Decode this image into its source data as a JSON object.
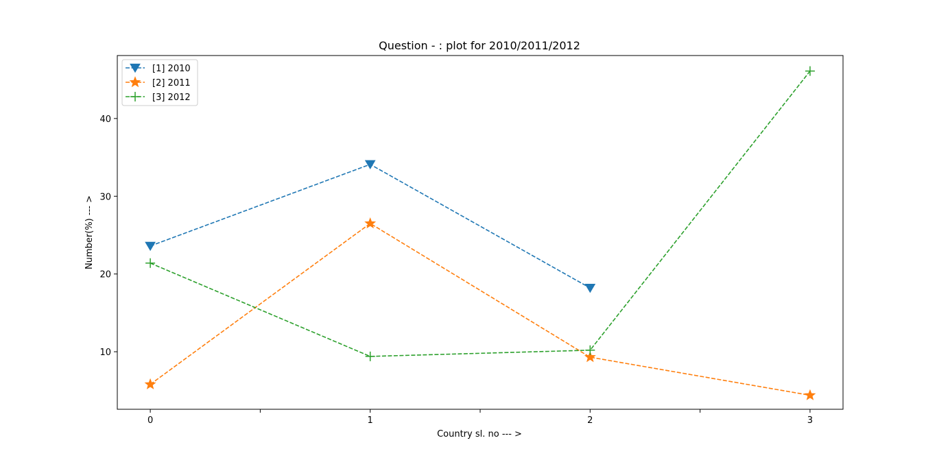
{
  "chart_data": {
    "type": "line",
    "title": "Question - : plot for 2010/2011/2012",
    "xlabel": "Country sl. no --- >",
    "ylabel": "Number(%) --- >",
    "xlim": [
      -0.15,
      3.15
    ],
    "ylim": [
      2.6,
      48.1
    ],
    "x_ticks": [
      0,
      0.5,
      1,
      1.5,
      2,
      2.5,
      3
    ],
    "x_tick_labels": [
      "0",
      "",
      "1",
      "",
      "2",
      "",
      "3"
    ],
    "y_ticks": [
      10,
      20,
      30,
      40
    ],
    "y_tick_labels": [
      "10",
      "20",
      "30",
      "40"
    ],
    "grid": false,
    "legend_position": "top-left",
    "series": [
      {
        "name": "[1] 2010",
        "color": "#1f77b4",
        "marker": "triangle-down",
        "x": [
          0,
          1,
          2
        ],
        "values": [
          23.6,
          34.1,
          18.2
        ]
      },
      {
        "name": "[2] 2011",
        "color": "#ff7f0e",
        "marker": "star",
        "x": [
          0,
          1,
          2,
          3
        ],
        "values": [
          5.8,
          26.5,
          9.3,
          4.4
        ]
      },
      {
        "name": "[3] 2012",
        "color": "#2ca02c",
        "marker": "plus",
        "x": [
          0,
          1,
          2,
          3
        ],
        "values": [
          21.4,
          9.4,
          10.2,
          46.1
        ]
      }
    ]
  }
}
